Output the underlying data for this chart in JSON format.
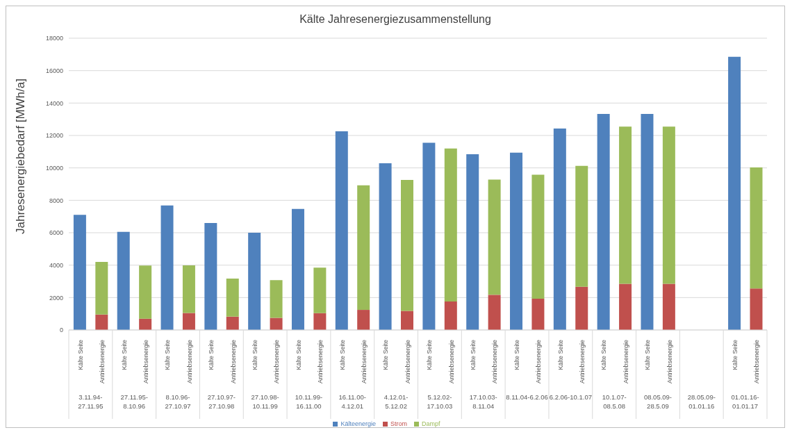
{
  "chart_data": {
    "type": "bar",
    "title": "Kälte Jahresenergiezusammenstellung",
    "ylabel": "Jahresenergiebedarf [MWh/a]",
    "categories": [
      "Kälte Seite",
      "Antriebsenergie",
      "Kälte Seite",
      "Antriebsenergie",
      "Kälte Seite",
      "Antriebsenergie",
      "Kälte Seite",
      "Antriebsenergie",
      "Kälte Seite",
      "Antriebsenergie",
      "Kälte Seite",
      "Antriebsenergie",
      "Kälte Seite",
      "Antriebsenergie",
      "Kälte Seite",
      "Antriebsenergie",
      "Kälte Seite",
      "Antriebsenergie",
      "Kälte Seite",
      "Antriebsenergie",
      "Kälte Seite",
      "Antriebsenergie",
      "Kälte Seite",
      "Antriebsenergie",
      "Kälte Seite",
      "Antriebsenergie",
      "Kälte Seite",
      "Antriebsenergie",
      null,
      null,
      "Kälte Seite",
      "Antriebsenergie"
    ],
    "annotations": [
      "3.11.94-27.11.95",
      "27.11.95-8.10.96",
      "8.10.96-27.10.97",
      "27.10.97-27.10.98",
      "27.10.98-10.11.99",
      "10.11.99-16.11.00",
      "16.11.00-4.12.01",
      "4.12.01-5.12.02",
      "5.12.02-17.10.03",
      "17.10.03-8.11.04",
      "8.11.04-6.2.06",
      "6.2.06-10.1.07",
      "10.1.07-08.5.08",
      "08.05.09-28.5.09",
      "28.05.09-01.01.16",
      "01.01.16-01.01.17"
    ],
    "stacked": true,
    "series": [
      {
        "name": "Kälteenergie",
        "color": "#4f81bd",
        "values": [
          7100,
          null,
          6050,
          null,
          7680,
          null,
          6600,
          null,
          6000,
          null,
          7470,
          null,
          12260,
          null,
          10290,
          null,
          11550,
          null,
          10840,
          null,
          10940,
          null,
          12430,
          null,
          13330,
          null,
          13330,
          null,
          null,
          null,
          16850,
          null
        ]
      },
      {
        "name": "Strom",
        "color": "#c0504d",
        "values": [
          null,
          950,
          null,
          700,
          null,
          1050,
          null,
          820,
          null,
          750,
          null,
          1040,
          null,
          1240,
          null,
          1180,
          null,
          1760,
          null,
          2170,
          null,
          1930,
          null,
          2670,
          null,
          2850,
          null,
          2850,
          null,
          null,
          null,
          2560
        ]
      },
      {
        "name": "Dampf",
        "color": "#9bbb59",
        "values": [
          null,
          3250,
          null,
          3270,
          null,
          2940,
          null,
          2350,
          null,
          2330,
          null,
          2810,
          null,
          7690,
          null,
          8080,
          null,
          9440,
          null,
          7110,
          null,
          7650,
          null,
          7450,
          null,
          9700,
          null,
          9700,
          null,
          null,
          null,
          7470
        ]
      }
    ],
    "ylim": [
      0,
      18000
    ],
    "yticks": [
      0,
      2000,
      4000,
      6000,
      8000,
      10000,
      12000,
      14000,
      16000,
      18000
    ],
    "grid": "y",
    "legend": "bottom"
  }
}
